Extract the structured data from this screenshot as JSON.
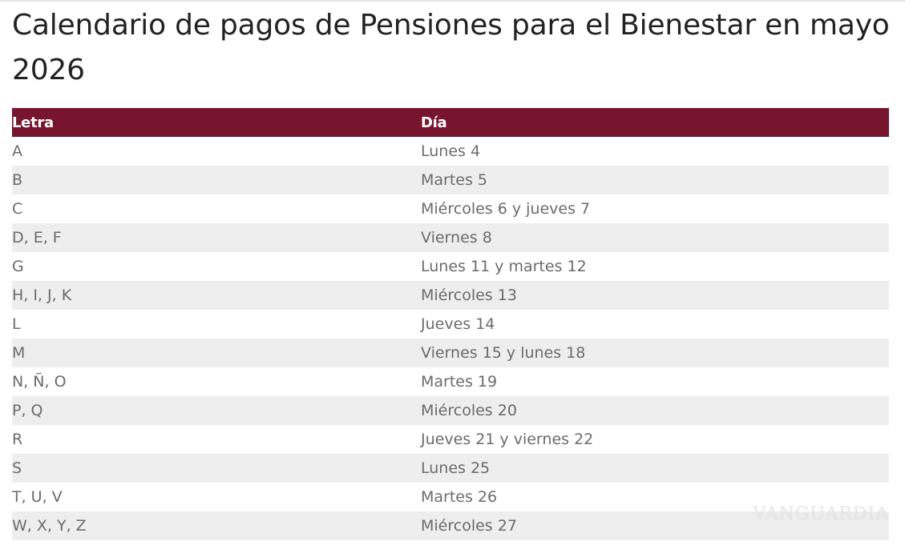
{
  "article": {
    "title": "Calendario de pagos de Pensiones para el Bienestar en mayo 2026"
  },
  "schedule_table": {
    "headers": {
      "letter": "Letra",
      "day": "Día"
    },
    "rows": [
      {
        "letter": "A",
        "day": "Lunes 4"
      },
      {
        "letter": "B",
        "day": "Martes 5"
      },
      {
        "letter": "C",
        "day": "Miércoles 6 y jueves 7"
      },
      {
        "letter": "D, E, F",
        "day": "Viernes 8"
      },
      {
        "letter": "G",
        "day": "Lunes 11 y martes 12"
      },
      {
        "letter": "H, I, J, K",
        "day": "Miércoles 13"
      },
      {
        "letter": "L",
        "day": "Jueves 14"
      },
      {
        "letter": "M",
        "day": "Viernes 15 y lunes 18"
      },
      {
        "letter": "N, Ñ, O",
        "day": "Martes 19"
      },
      {
        "letter": "P, Q",
        "day": "Miércoles 20"
      },
      {
        "letter": "R",
        "day": "Jueves 21 y viernes 22"
      },
      {
        "letter": "S",
        "day": "Lunes 25"
      },
      {
        "letter": "T, U, V",
        "day": "Martes 26"
      },
      {
        "letter": "W, X, Y, Z",
        "day": "Miércoles 27"
      }
    ]
  },
  "watermark": {
    "text": "VANGUARDIA"
  },
  "colors": {
    "header_background": "#78152e",
    "header_text": "#ffffff",
    "row_stripe": "#eeeeef",
    "cell_text": "#6b6b6b",
    "title_text": "#222222"
  }
}
